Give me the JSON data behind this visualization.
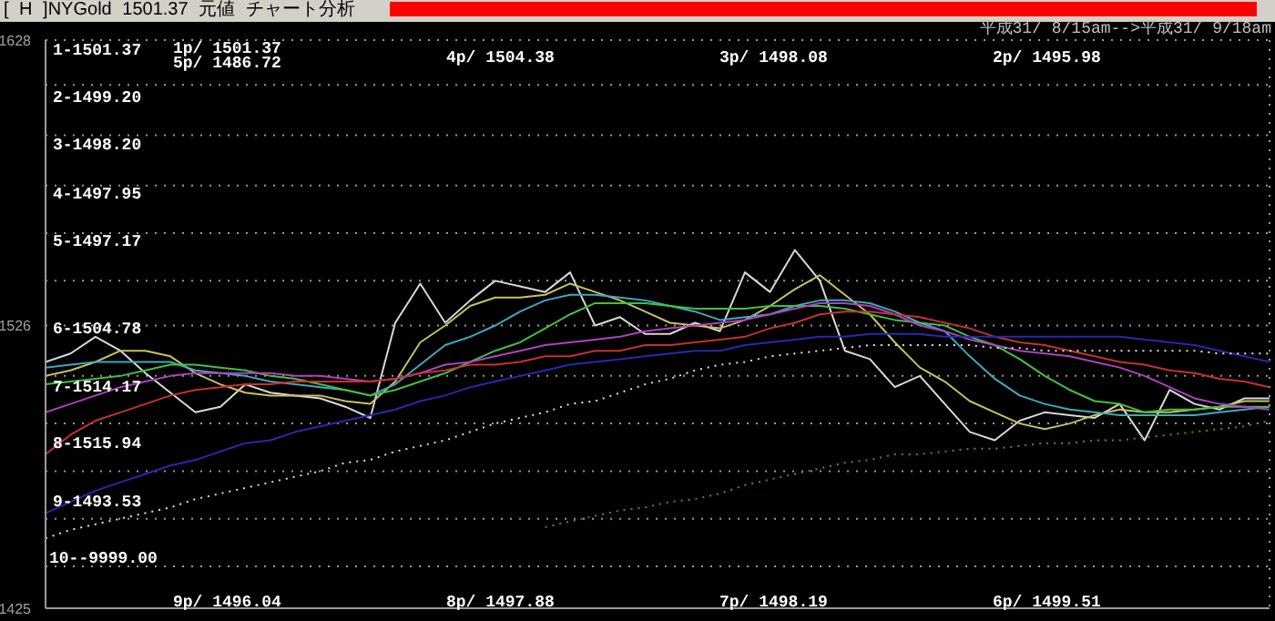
{
  "chart_data": {
    "type": "line",
    "title": "[ H ]NYGold 1501.37 元値 チャート分析",
    "subtitle": "平成31/ 8/15am-->平成31/ 9/18am",
    "categories": [
      null,
      null,
      null,
      null,
      null,
      null,
      null,
      null,
      null,
      null,
      null,
      null,
      null,
      null,
      null,
      null,
      null,
      null,
      null,
      null,
      null,
      null,
      null,
      null,
      null,
      null,
      null,
      null,
      null,
      null,
      null,
      null,
      null,
      null,
      null,
      null,
      null,
      null,
      null,
      null,
      null,
      null,
      null,
      null,
      null,
      null,
      null,
      null,
      null,
      null
    ],
    "ylim": [
      1425,
      1628
    ],
    "yticks": [
      1425,
      {
        "value": 1440,
        "label": null
      },
      {
        "value": 1457,
        "label": null
      },
      {
        "value": 1474,
        "label": null
      },
      {
        "value": 1491,
        "label": null
      },
      {
        "value": 1508,
        "label": null
      },
      1526,
      {
        "value": 1542,
        "label": null
      },
      {
        "value": 1559,
        "label": null
      },
      {
        "value": 1576,
        "label": null
      },
      {
        "value": 1594,
        "label": null
      },
      {
        "value": 1612,
        "label": null
      },
      1628
    ],
    "grid": true,
    "marker": "none",
    "series": [
      {
        "color": "#d8d8d8",
        "line_style": "solid",
        "values": [
          1513,
          1516,
          1522,
          1517,
          1509,
          1502,
          1495,
          1497,
          1505,
          1502,
          1501,
          1500,
          1497,
          1493,
          1527,
          1541,
          1527,
          1535,
          1542,
          1540,
          1538,
          1545,
          1526,
          1529,
          1523,
          1523,
          1527,
          1524,
          1545,
          1538,
          1553,
          1542,
          1517,
          1514,
          1504,
          1508,
          1498,
          1488,
          1485,
          1492,
          1495,
          1494,
          1493,
          1498,
          1485,
          1503,
          1498,
          1496,
          1500,
          1500
        ]
      },
      {
        "color": "#c8c060",
        "line_style": "solid",
        "values": [
          1508,
          1510,
          1513,
          1517,
          1517,
          1515,
          1509,
          1505,
          1502,
          1501,
          1501,
          1501,
          1499,
          1498,
          1506,
          1520,
          1526,
          1533,
          1536,
          1536,
          1537,
          1541,
          1538,
          1535,
          1531,
          1527,
          1526,
          1525,
          1528,
          1533,
          1539,
          1544,
          1537,
          1530,
          1520,
          1511,
          1506,
          1499,
          1495,
          1491,
          1489,
          1491,
          1494,
          1496,
          1495,
          1495,
          1496,
          1497,
          1499,
          1499
        ]
      },
      {
        "color": "#40a8c0",
        "line_style": "solid",
        "values": [
          1511,
          1512,
          1513,
          1513,
          1513,
          1513,
          1510,
          1509,
          1508,
          1506,
          1505,
          1504,
          1503,
          1501,
          1505,
          1512,
          1519,
          1522,
          1526,
          1531,
          1535,
          1537,
          1537,
          1536,
          1535,
          1533,
          1531,
          1528,
          1529,
          1530,
          1533,
          1535,
          1535,
          1534,
          1531,
          1527,
          1524,
          1515,
          1507,
          1501,
          1498,
          1496,
          1495,
          1494,
          1494,
          1494,
          1494,
          1495,
          1496,
          1497
        ]
      },
      {
        "color": "#40c040",
        "line_style": "solid",
        "values": [
          1505,
          1506,
          1507,
          1508,
          1510,
          1512,
          1512,
          1511,
          1510,
          1508,
          1507,
          1505,
          1503,
          1501,
          1503,
          1506,
          1509,
          1513,
          1517,
          1520,
          1525,
          1530,
          1534,
          1534,
          1534,
          1533,
          1532,
          1532,
          1532,
          1533,
          1533,
          1533,
          1532,
          1530,
          1528,
          1527,
          1526,
          1522,
          1519,
          1514,
          1508,
          1503,
          1499,
          1498,
          1495,
          1496,
          1496,
          1497,
          1497,
          1497
        ]
      },
      {
        "color": "#b040c0",
        "line_style": "solid",
        "values": [
          1495,
          1498,
          1501,
          1504,
          1506,
          1508,
          1509,
          1509,
          1509,
          1509,
          1508,
          1508,
          1507,
          1506,
          1507,
          1509,
          1512,
          1513,
          1515,
          1517,
          1519,
          1520,
          1521,
          1522,
          1524,
          1525,
          1526,
          1527,
          1528,
          1530,
          1532,
          1534,
          1534,
          1533,
          1530,
          1526,
          1524,
          1521,
          1519,
          1517,
          1516,
          1515,
          1513,
          1511,
          1508,
          1504,
          1500,
          1498,
          1497,
          1496
        ]
      },
      {
        "color": "#c83030",
        "line_style": "solid",
        "values": [
          1480,
          1487,
          1492,
          1495,
          1498,
          1501,
          1503,
          1504,
          1505,
          1505,
          1506,
          1506,
          1506,
          1506,
          1507,
          1509,
          1510,
          1512,
          1512,
          1513,
          1515,
          1515,
          1517,
          1517,
          1519,
          1519,
          1520,
          1521,
          1522,
          1525,
          1527,
          1530,
          1531,
          1531,
          1530,
          1529,
          1527,
          1525,
          1522,
          1520,
          1519,
          1517,
          1515,
          1513,
          1512,
          1510,
          1509,
          1507,
          1506,
          1504
        ]
      },
      {
        "color": "#2828b0",
        "line_style": "solid",
        "values": [
          1459,
          1463,
          1467,
          1470,
          1473,
          1476,
          1478,
          1481,
          1484,
          1485,
          1488,
          1490,
          1492,
          1494,
          1496,
          1499,
          1501,
          1504,
          1506,
          1508,
          1510,
          1512,
          1513,
          1514,
          1515,
          1516,
          1517,
          1517,
          1519,
          1520,
          1521,
          1522,
          1522,
          1523,
          1523,
          1523,
          1522,
          1522,
          1522,
          1522,
          1522,
          1522,
          1522,
          1522,
          1521,
          1520,
          1519,
          1517,
          1515,
          1513
        ]
      },
      {
        "color": "#e0e0e0",
        "line_style": "dotted",
        "values": [
          1450,
          1453,
          1455,
          1457,
          1459,
          1461,
          1464,
          1466,
          1468,
          1470,
          1472,
          1474,
          1477,
          1478,
          1481,
          1483,
          1485,
          1488,
          1491,
          1493,
          1495,
          1498,
          1499,
          1502,
          1505,
          1507,
          1510,
          1512,
          1513,
          1515,
          1516,
          1517,
          1518,
          1519,
          1519,
          1519,
          1519,
          1519,
          1518,
          1518,
          1517,
          1517,
          1517,
          1517,
          1517,
          1517,
          1517,
          1516,
          1516,
          1516
        ]
      },
      {
        "color": "#30a030",
        "line_style": "dotted",
        "values": [
          null,
          null,
          null,
          null,
          null,
          null,
          null,
          null,
          null,
          null,
          null,
          null,
          null,
          null,
          null,
          null,
          null,
          null,
          null,
          null,
          1454,
          1456,
          1458,
          1460,
          1461,
          1463,
          1464,
          1466,
          1469,
          1471,
          1473,
          1475,
          1477,
          1478,
          1480,
          1480,
          1481,
          1482,
          1482,
          1483,
          1484,
          1484,
          1485,
          1485,
          1486,
          1487,
          1488,
          1489,
          1490,
          1492
        ]
      }
    ],
    "annotations": [
      "1-1501.37",
      "2-1499.20",
      "3-1498.20",
      "4-1497.95",
      "5-1497.17",
      "6-1504.78",
      "7-1514.17",
      "8-1515.94",
      "9-1493.53",
      "10--9999.00",
      "1p/ 1501.37",
      "5p/ 1486.72",
      "4p/ 1504.38",
      "3p/ 1498.08",
      "2p/ 1495.98",
      "9p/ 1496.04",
      "8p/ 1497.88",
      "7p/ 1498.19",
      "6p/ 1499.51"
    ]
  }
}
